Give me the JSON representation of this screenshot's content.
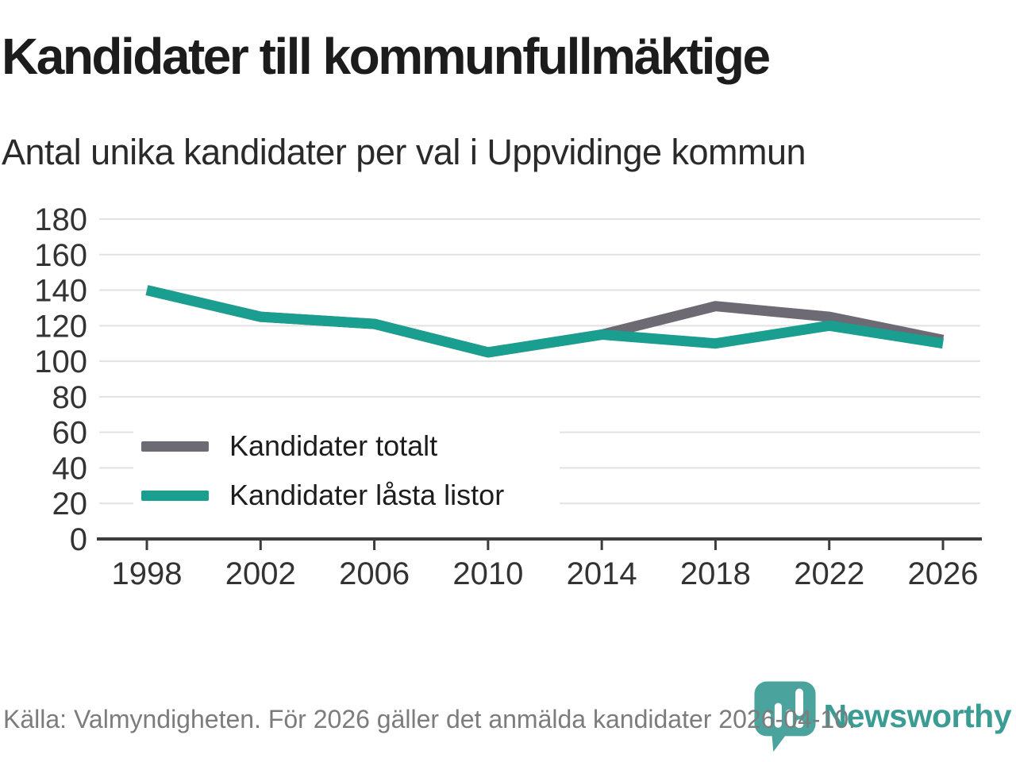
{
  "header": {
    "title": "Kandidater till kommunfullmäktige",
    "subtitle": "Antal unika kandidater per val i Uppvidinge kommun"
  },
  "chart_data": {
    "type": "line",
    "title": "Kandidater till kommunfullmäktige",
    "subtitle": "Antal unika kandidater per val i Uppvidinge kommun",
    "categories": [
      "1998",
      "2002",
      "2006",
      "2010",
      "2014",
      "2018",
      "2022",
      "2026"
    ],
    "series": [
      {
        "name": "Kandidater totalt",
        "color": "#6d6a73",
        "values": [
          140,
          125,
          121,
          105,
          115,
          131,
          125,
          112
        ]
      },
      {
        "name": "Kandidater låsta listor",
        "color": "#1a9e8f",
        "values": [
          140,
          125,
          121,
          105,
          115,
          110,
          120,
          110
        ]
      }
    ],
    "ylim": [
      0,
      180
    ],
    "ytick_step": 20,
    "xlabel": "",
    "ylabel": "",
    "grid": "horizontal",
    "legend_position": "inside-lower-left"
  },
  "footer": {
    "source": "Källa: Valmyndigheten. För 2026 gäller det anmälda kandidater 2026-04-10."
  },
  "branding": {
    "logo_text": "Newsworthy",
    "logo_text_color": "#3b9c94",
    "logo_icon_color": "#4ba39d"
  },
  "style": {
    "axis_color": "#3c3c3c",
    "gridline_color": "#e2e2e2",
    "tick_label_color": "#333333"
  }
}
